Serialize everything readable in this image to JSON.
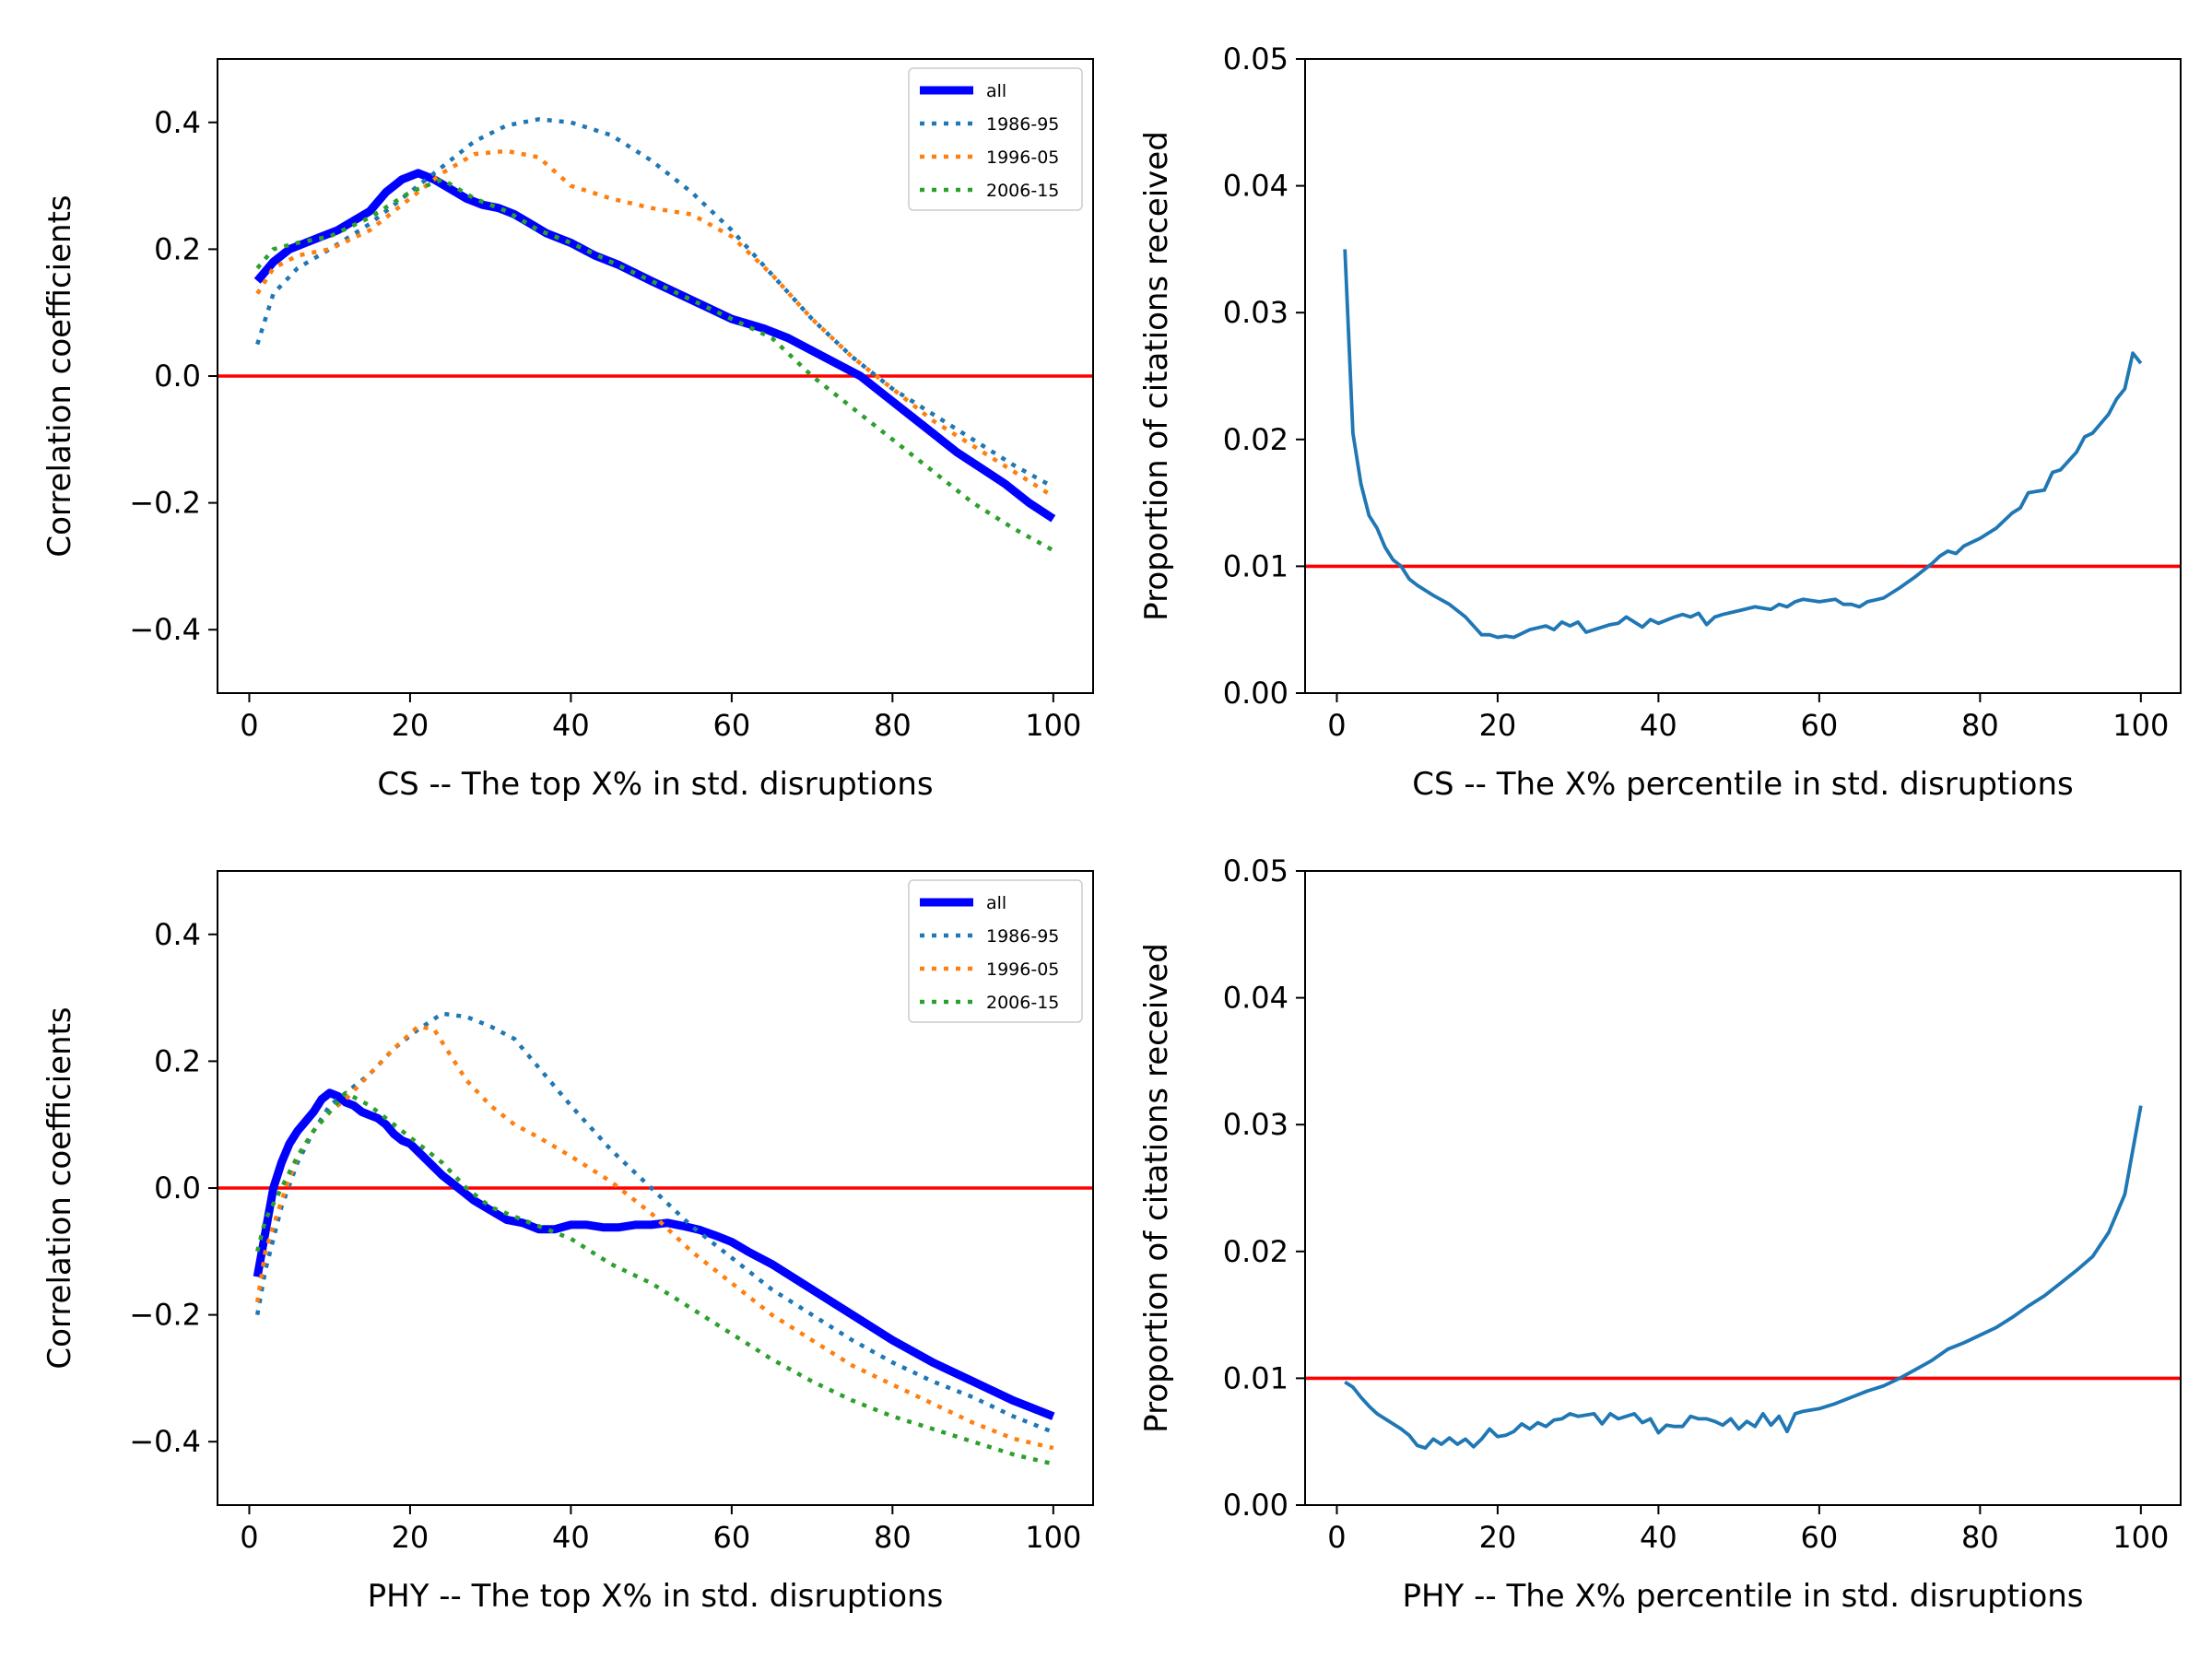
{
  "chart_data": [
    {
      "id": "cs-corr",
      "type": "line",
      "xlabel": "CS -- The top X% in std. disruptions",
      "ylabel": "Correlation coefficients",
      "xlim": [
        -3.95,
        104.95
      ],
      "ylim": [
        -0.5,
        0.5
      ],
      "xticks": [
        0,
        20,
        40,
        60,
        80,
        100
      ],
      "xtick_labels": [
        "0",
        "20",
        "40",
        "60",
        "80",
        "100"
      ],
      "yticks": [
        -0.4,
        -0.2,
        0.0,
        0.2,
        0.4
      ],
      "ytick_labels": [
        "−0.4",
        "−0.2",
        "0.0",
        "0.2",
        "0.4"
      ],
      "reference_line": {
        "y": 0.0,
        "color": "#ff0000"
      },
      "legend": {
        "placement": "top-right"
      },
      "series": [
        {
          "name": "all",
          "color": "#0000ff",
          "style": "solid-thick",
          "x": [
            1,
            3,
            5,
            7,
            9,
            11,
            13,
            15,
            17,
            19,
            21,
            23,
            25,
            27,
            29,
            31,
            33,
            35,
            37,
            40,
            43,
            46,
            50,
            55,
            60,
            64,
            67,
            70,
            73,
            76,
            79,
            82,
            85,
            88,
            91,
            94,
            97,
            100
          ],
          "y": [
            0.15,
            0.18,
            0.2,
            0.21,
            0.22,
            0.23,
            0.245,
            0.26,
            0.29,
            0.31,
            0.32,
            0.31,
            0.295,
            0.28,
            0.27,
            0.265,
            0.255,
            0.24,
            0.225,
            0.21,
            0.19,
            0.175,
            0.15,
            0.12,
            0.09,
            0.075,
            0.06,
            0.04,
            0.02,
            0.0,
            -0.03,
            -0.06,
            -0.09,
            -0.12,
            -0.145,
            -0.17,
            -0.2,
            -0.225
          ]
        },
        {
          "name": "1986-95",
          "color": "#1f77b4",
          "style": "dotted",
          "x": [
            1,
            3,
            6,
            10,
            15,
            20,
            24,
            28,
            32,
            36,
            40,
            45,
            50,
            55,
            60,
            65,
            70,
            75,
            80,
            85,
            90,
            95,
            100
          ],
          "y": [
            0.05,
            0.13,
            0.17,
            0.2,
            0.24,
            0.29,
            0.33,
            0.37,
            0.395,
            0.405,
            0.4,
            0.38,
            0.34,
            0.29,
            0.23,
            0.16,
            0.09,
            0.03,
            -0.02,
            -0.06,
            -0.1,
            -0.14,
            -0.175
          ]
        },
        {
          "name": "1996-05",
          "color": "#ff7f0e",
          "style": "dotted",
          "x": [
            1,
            3,
            6,
            10,
            15,
            20,
            24,
            28,
            32,
            36,
            40,
            45,
            50,
            55,
            60,
            65,
            70,
            75,
            80,
            85,
            90,
            95,
            100
          ],
          "y": [
            0.13,
            0.17,
            0.19,
            0.2,
            0.23,
            0.28,
            0.32,
            0.35,
            0.355,
            0.345,
            0.3,
            0.28,
            0.265,
            0.255,
            0.22,
            0.16,
            0.09,
            0.03,
            -0.02,
            -0.07,
            -0.11,
            -0.15,
            -0.19
          ]
        },
        {
          "name": "2006-15",
          "color": "#2ca02c",
          "style": "dotted",
          "x": [
            1,
            3,
            6,
            10,
            15,
            20,
            24,
            28,
            32,
            36,
            40,
            45,
            50,
            55,
            60,
            65,
            70,
            75,
            80,
            85,
            90,
            95,
            100
          ],
          "y": [
            0.17,
            0.2,
            0.21,
            0.22,
            0.25,
            0.29,
            0.31,
            0.28,
            0.26,
            0.23,
            0.21,
            0.18,
            0.15,
            0.12,
            0.09,
            0.06,
            0.0,
            -0.05,
            -0.1,
            -0.15,
            -0.2,
            -0.24,
            -0.275
          ]
        }
      ]
    },
    {
      "id": "cs-prop",
      "type": "line",
      "xlabel": "CS -- The X% percentile in std. disruptions",
      "ylabel": "Proportion of citations received",
      "xlim": [
        -3.95,
        104.95
      ],
      "ylim": [
        0.0,
        0.05
      ],
      "xticks": [
        0,
        20,
        40,
        60,
        80,
        100
      ],
      "xtick_labels": [
        "0",
        "20",
        "40",
        "60",
        "80",
        "100"
      ],
      "yticks": [
        0.0,
        0.01,
        0.02,
        0.03,
        0.04,
        0.05
      ],
      "ytick_labels": [
        "0.00",
        "0.01",
        "0.02",
        "0.03",
        "0.04",
        "0.05"
      ],
      "reference_line": {
        "y": 0.01,
        "color": "#ff0000"
      },
      "series": [
        {
          "name": "proportion",
          "color": "#1f77b4",
          "style": "solid",
          "x": [
            1,
            2,
            3,
            4,
            5,
            6,
            7,
            8,
            9,
            10,
            12,
            14,
            16,
            17,
            18,
            19,
            20,
            21,
            22,
            24,
            26,
            27,
            28,
            29,
            30,
            31,
            32,
            34,
            35,
            36,
            37,
            38,
            39,
            40,
            42,
            43,
            44,
            45,
            46,
            47,
            48,
            50,
            52,
            54,
            55,
            56,
            57,
            58,
            60,
            62,
            63,
            64,
            65,
            66,
            68,
            70,
            72,
            74,
            75,
            76,
            77,
            78,
            80,
            82,
            84,
            85,
            86,
            88,
            89,
            90,
            92,
            93,
            94,
            96,
            97,
            98,
            99,
            100
          ],
          "y": [
            0.035,
            0.0205,
            0.0165,
            0.014,
            0.013,
            0.0115,
            0.0105,
            0.01,
            0.009,
            0.0085,
            0.0077,
            0.007,
            0.006,
            0.0053,
            0.0046,
            0.0046,
            0.0044,
            0.0045,
            0.0044,
            0.005,
            0.0053,
            0.005,
            0.0056,
            0.0053,
            0.0056,
            0.0048,
            0.005,
            0.0054,
            0.0055,
            0.006,
            0.0056,
            0.0052,
            0.0058,
            0.0055,
            0.006,
            0.0062,
            0.006,
            0.0063,
            0.0054,
            0.006,
            0.0062,
            0.0065,
            0.0068,
            0.0066,
            0.007,
            0.0068,
            0.0072,
            0.0074,
            0.0072,
            0.0074,
            0.007,
            0.007,
            0.0068,
            0.0072,
            0.0075,
            0.0083,
            0.0092,
            0.0102,
            0.0108,
            0.0112,
            0.011,
            0.0116,
            0.0122,
            0.013,
            0.0142,
            0.0146,
            0.0158,
            0.016,
            0.0174,
            0.0176,
            0.019,
            0.0202,
            0.0205,
            0.022,
            0.0232,
            0.024,
            0.0268,
            0.026
          ]
        }
      ]
    },
    {
      "id": "phy-corr",
      "type": "line",
      "xlabel": "PHY -- The top X% in std. disruptions",
      "ylabel": "Correlation coefficients",
      "xlim": [
        -3.95,
        104.95
      ],
      "ylim": [
        -0.5,
        0.5
      ],
      "xticks": [
        0,
        20,
        40,
        60,
        80,
        100
      ],
      "xtick_labels": [
        "0",
        "20",
        "40",
        "60",
        "80",
        "100"
      ],
      "yticks": [
        -0.4,
        -0.2,
        0.0,
        0.2,
        0.4
      ],
      "ytick_labels": [
        "−0.4",
        "−0.2",
        "0.0",
        "0.2",
        "0.4"
      ],
      "reference_line": {
        "y": 0.0,
        "color": "#ff0000"
      },
      "legend": {
        "placement": "top-right"
      },
      "series": [
        {
          "name": "all",
          "color": "#0000ff",
          "style": "solid-thick",
          "x": [
            1,
            2,
            3,
            4,
            5,
            6,
            7,
            8,
            9,
            10,
            11,
            12,
            13,
            14,
            15,
            16,
            17,
            18,
            19,
            20,
            22,
            24,
            26,
            28,
            30,
            32,
            34,
            36,
            38,
            40,
            42,
            44,
            46,
            48,
            50,
            52,
            54,
            56,
            58,
            60,
            62,
            65,
            70,
            75,
            80,
            85,
            90,
            95,
            98,
            100
          ],
          "y": [
            -0.14,
            -0.07,
            0.0,
            0.04,
            0.07,
            0.09,
            0.105,
            0.12,
            0.14,
            0.15,
            0.145,
            0.135,
            0.13,
            0.12,
            0.115,
            0.11,
            0.1,
            0.085,
            0.075,
            0.07,
            0.045,
            0.02,
            0.0,
            -0.02,
            -0.035,
            -0.05,
            -0.055,
            -0.065,
            -0.065,
            -0.058,
            -0.058,
            -0.062,
            -0.062,
            -0.058,
            -0.058,
            -0.055,
            -0.06,
            -0.066,
            -0.075,
            -0.085,
            -0.1,
            -0.12,
            -0.16,
            -0.2,
            -0.24,
            -0.275,
            -0.305,
            -0.335,
            -0.35,
            -0.36
          ]
        },
        {
          "name": "1986-95",
          "color": "#1f77b4",
          "style": "dotted",
          "x": [
            1,
            2,
            4,
            6,
            8,
            10,
            12,
            15,
            18,
            21,
            24,
            27,
            30,
            33,
            36,
            40,
            45,
            50,
            55,
            60,
            65,
            70,
            75,
            80,
            85,
            90,
            95,
            100
          ],
          "y": [
            -0.2,
            -0.13,
            -0.03,
            0.04,
            0.09,
            0.13,
            0.15,
            0.18,
            0.22,
            0.25,
            0.275,
            0.27,
            0.255,
            0.235,
            0.19,
            0.13,
            0.06,
            0.0,
            -0.06,
            -0.11,
            -0.16,
            -0.2,
            -0.24,
            -0.275,
            -0.305,
            -0.33,
            -0.36,
            -0.385
          ]
        },
        {
          "name": "1996-05",
          "color": "#ff7f0e",
          "style": "dotted",
          "x": [
            1,
            2,
            4,
            6,
            8,
            10,
            12,
            15,
            18,
            21,
            23,
            25,
            27,
            30,
            33,
            36,
            40,
            45,
            50,
            55,
            60,
            65,
            70,
            75,
            80,
            85,
            90,
            95,
            100
          ],
          "y": [
            -0.18,
            -0.1,
            -0.02,
            0.05,
            0.09,
            0.12,
            0.14,
            0.18,
            0.22,
            0.255,
            0.25,
            0.21,
            0.17,
            0.13,
            0.1,
            0.08,
            0.05,
            0.01,
            -0.04,
            -0.1,
            -0.15,
            -0.2,
            -0.24,
            -0.28,
            -0.31,
            -0.34,
            -0.37,
            -0.395,
            -0.41
          ]
        },
        {
          "name": "2006-15",
          "color": "#2ca02c",
          "style": "dotted",
          "x": [
            1,
            2,
            4,
            6,
            8,
            10,
            12,
            15,
            18,
            21,
            24,
            27,
            30,
            33,
            36,
            40,
            45,
            50,
            55,
            60,
            65,
            70,
            75,
            80,
            85,
            90,
            95,
            100
          ],
          "y": [
            -0.1,
            -0.05,
            0.0,
            0.05,
            0.09,
            0.12,
            0.15,
            0.13,
            0.1,
            0.07,
            0.04,
            0.0,
            -0.03,
            -0.045,
            -0.06,
            -0.08,
            -0.12,
            -0.15,
            -0.19,
            -0.23,
            -0.27,
            -0.305,
            -0.335,
            -0.36,
            -0.38,
            -0.4,
            -0.42,
            -0.435
          ]
        }
      ]
    },
    {
      "id": "phy-prop",
      "type": "line",
      "xlabel": "PHY -- The X% percentile in std. disruptions",
      "ylabel": "Proportion of citations received",
      "xlim": [
        -3.95,
        104.95
      ],
      "ylim": [
        0.0,
        0.05
      ],
      "xticks": [
        0,
        20,
        40,
        60,
        80,
        100
      ],
      "xtick_labels": [
        "0",
        "20",
        "40",
        "60",
        "80",
        "100"
      ],
      "yticks": [
        0.0,
        0.01,
        0.02,
        0.03,
        0.04,
        0.05
      ],
      "ytick_labels": [
        "0.00",
        "0.01",
        "0.02",
        "0.03",
        "0.04",
        "0.05"
      ],
      "reference_line": {
        "y": 0.01,
        "color": "#ff0000"
      },
      "series": [
        {
          "name": "proportion",
          "color": "#1f77b4",
          "style": "solid",
          "x": [
            1,
            2,
            3,
            4,
            5,
            6,
            7,
            8,
            9,
            10,
            11,
            12,
            13,
            14,
            15,
            16,
            17,
            18,
            19,
            20,
            21,
            22,
            23,
            24,
            25,
            26,
            27,
            28,
            29,
            30,
            32,
            33,
            34,
            35,
            36,
            37,
            38,
            39,
            40,
            41,
            42,
            43,
            44,
            45,
            46,
            47,
            48,
            49,
            50,
            51,
            52,
            53,
            54,
            55,
            56,
            57,
            58,
            60,
            62,
            64,
            66,
            68,
            70,
            72,
            74,
            76,
            78,
            80,
            82,
            84,
            86,
            88,
            90,
            92,
            94,
            96,
            98,
            99,
            100
          ],
          "y": [
            0.0097,
            0.0093,
            0.0085,
            0.0078,
            0.0072,
            0.0068,
            0.0064,
            0.006,
            0.0055,
            0.0047,
            0.0045,
            0.0052,
            0.0048,
            0.0053,
            0.0048,
            0.0052,
            0.0046,
            0.0052,
            0.006,
            0.0054,
            0.0055,
            0.0058,
            0.0064,
            0.006,
            0.0065,
            0.0062,
            0.0067,
            0.0068,
            0.0072,
            0.007,
            0.0072,
            0.0064,
            0.0072,
            0.0068,
            0.007,
            0.0072,
            0.0065,
            0.0068,
            0.0057,
            0.0063,
            0.0062,
            0.0062,
            0.007,
            0.0068,
            0.0068,
            0.0066,
            0.0063,
            0.0068,
            0.006,
            0.0066,
            0.0062,
            0.0072,
            0.0063,
            0.007,
            0.0058,
            0.0072,
            0.0074,
            0.0076,
            0.008,
            0.0085,
            0.009,
            0.0094,
            0.01,
            0.0107,
            0.0114,
            0.0123,
            0.0128,
            0.0134,
            0.014,
            0.0148,
            0.0157,
            0.0165,
            0.0175,
            0.0185,
            0.0196,
            0.0215,
            0.0245,
            0.028,
            0.0315
          ]
        }
      ]
    }
  ]
}
